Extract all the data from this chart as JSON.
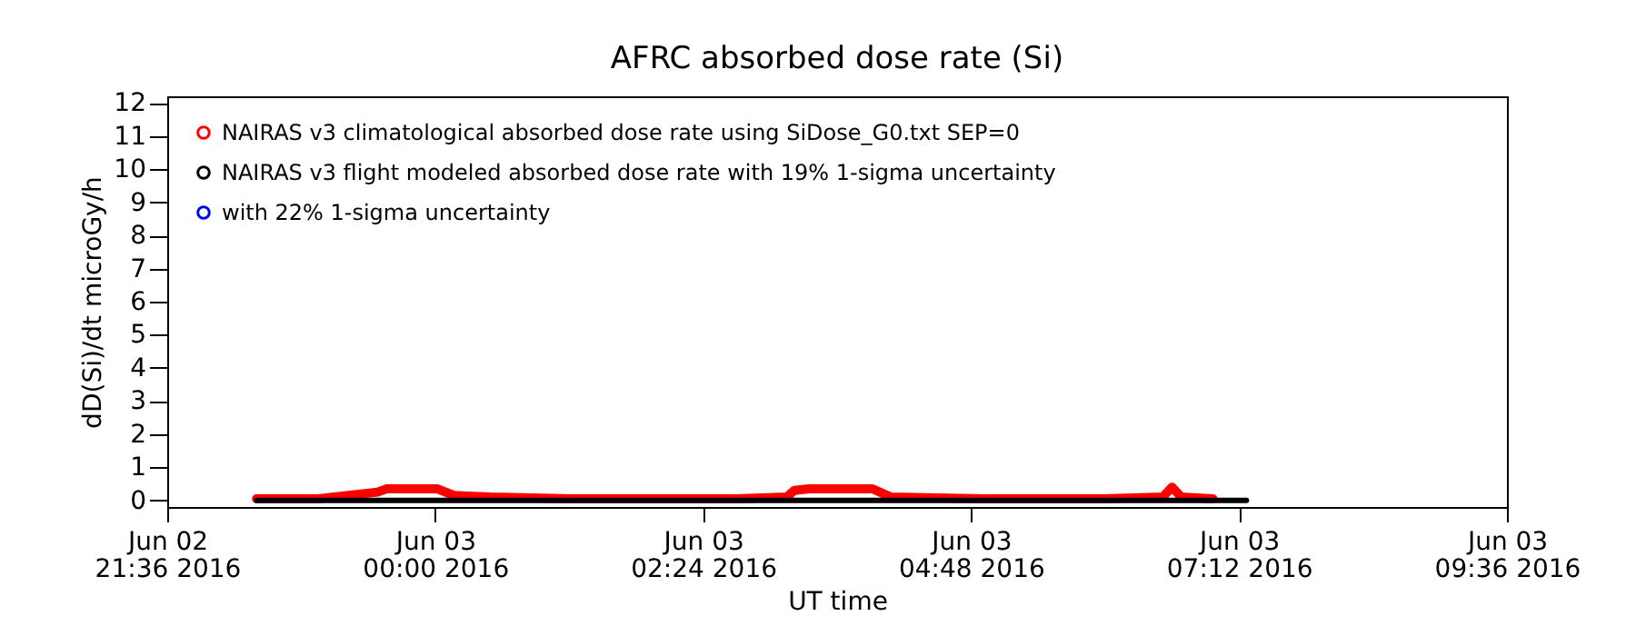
{
  "chart_data": {
    "type": "line",
    "title": "AFRC absorbed dose rate (Si)",
    "xlabel": "UT time",
    "ylabel": "dD(Si)/dt microGy/h",
    "xlim": [
      "2016-06-02T21:36",
      "2016-06-03T09:36"
    ],
    "xticks": [
      {
        "value": "2016-06-02T21:36",
        "label": "Jun 02\n21:36 2016"
      },
      {
        "value": "2016-06-03T00:00",
        "label": "Jun 03\n00:00 2016"
      },
      {
        "value": "2016-06-03T02:24",
        "label": "Jun 03\n02:24 2016"
      },
      {
        "value": "2016-06-03T04:48",
        "label": "Jun 03\n04:48 2016"
      },
      {
        "value": "2016-06-03T07:12",
        "label": "Jun 03\n07:12 2016"
      },
      {
        "value": "2016-06-03T09:36",
        "label": "Jun 03\n09:36 2016"
      }
    ],
    "ylim": [
      -0.2,
      12.2
    ],
    "yticks": [
      0,
      1,
      2,
      3,
      4,
      5,
      6,
      7,
      8,
      9,
      10,
      11,
      12
    ],
    "grid": false,
    "legend": "top left",
    "series": [
      {
        "name": "NAIRAS v3 climatological absorbed dose rate using SiDose_G0.txt SEP=0",
        "color": "#ff0000",
        "x": [
          "2016-06-02T22:24",
          "2016-06-02T22:57",
          "2016-06-02T23:29",
          "2016-06-02T23:34",
          "2016-06-03T00:01",
          "2016-06-03T00:10",
          "2016-06-03T00:30",
          "2016-06-03T01:14",
          "2016-06-03T02:42",
          "2016-06-03T03:09",
          "2016-06-03T03:13",
          "2016-06-03T03:21",
          "2016-06-03T03:55",
          "2016-06-03T04:05",
          "2016-06-03T04:56",
          "2016-06-03T05:59",
          "2016-06-03T06:31",
          "2016-06-03T06:36",
          "2016-06-03T06:41",
          "2016-06-03T06:58"
        ],
        "values": [
          0.05,
          0.05,
          0.25,
          0.35,
          0.35,
          0.15,
          0.1,
          0.05,
          0.05,
          0.1,
          0.3,
          0.35,
          0.35,
          0.1,
          0.05,
          0.05,
          0.1,
          0.4,
          0.1,
          0.05
        ]
      },
      {
        "name": "NAIRAS v3 flight modeled absorbed dose rate with 19% 1-sigma uncertainty",
        "color": "#000000",
        "x": [
          "2016-06-02T22:24",
          "2016-06-03T07:16"
        ],
        "values": [
          0,
          0
        ]
      },
      {
        "name": "with 22% 1-sigma uncertainty",
        "color": "#0000ff"
      }
    ]
  }
}
